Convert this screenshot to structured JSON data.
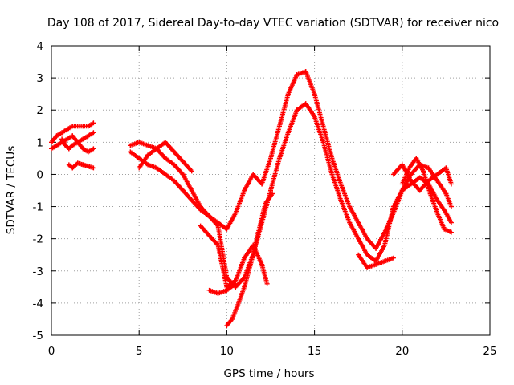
{
  "chart_data": {
    "type": "scatter",
    "title": "Day 108 of 2017, Sidereal Day-to-day VTEC variation (SDTVAR) for receiver nico",
    "xlabel": "GPS time / hours",
    "ylabel": "SDTVAR / TECUs",
    "xlim": [
      0,
      25
    ],
    "ylim": [
      -5,
      4
    ],
    "xticks": [
      "0",
      "5",
      "10",
      "15",
      "20",
      "25"
    ],
    "yticks": [
      "-5",
      "-4",
      "-3",
      "-2",
      "-1",
      "0",
      "1",
      "2",
      "3",
      "4"
    ],
    "grid": true,
    "legend": "none",
    "marker": "plus",
    "color": "#ff0000",
    "series": [
      {
        "x": [
          0.0,
          0.3,
          0.6,
          0.9,
          1.2,
          1.5,
          1.8,
          2.1,
          2.4
        ],
        "values": [
          1.0,
          1.2,
          1.3,
          1.4,
          1.5,
          1.5,
          1.5,
          1.5,
          1.6
        ]
      },
      {
        "x": [
          0.0,
          0.3,
          0.6,
          0.9,
          1.2,
          1.5,
          1.8,
          2.1,
          2.4
        ],
        "values": [
          0.8,
          0.9,
          1.0,
          1.1,
          1.2,
          1.0,
          0.8,
          0.7,
          0.8
        ]
      },
      {
        "x": [
          0.6,
          0.8,
          1.0,
          1.2,
          1.5,
          1.8,
          2.1,
          2.4
        ],
        "values": [
          1.1,
          0.9,
          0.8,
          0.9,
          1.0,
          1.1,
          1.2,
          1.3
        ]
      },
      {
        "x": [
          1.0,
          1.2,
          1.5,
          1.8,
          2.1,
          2.4
        ],
        "values": [
          0.3,
          0.2,
          0.35,
          0.3,
          0.25,
          0.2
        ]
      },
      {
        "x": [
          4.5,
          5.0,
          5.5,
          6.0,
          6.5,
          7.0,
          7.5,
          8.0,
          8.5,
          9.0,
          9.5,
          10.0,
          10.5,
          11.0,
          11.5,
          12.0,
          12.5,
          13.0,
          13.5,
          14.0,
          14.5,
          15.0,
          15.5,
          16.0,
          16.5,
          17.0,
          17.5,
          18.0,
          18.5,
          19.0,
          19.5,
          20.0,
          20.5,
          21.0,
          21.5,
          22.0,
          22.5,
          22.8
        ],
        "values": [
          0.9,
          1.0,
          0.9,
          0.8,
          0.5,
          0.3,
          0.0,
          -0.5,
          -1.0,
          -1.3,
          -1.5,
          -1.7,
          -1.2,
          -0.5,
          0.0,
          -0.3,
          0.5,
          1.5,
          2.5,
          3.1,
          3.2,
          2.5,
          1.5,
          0.5,
          -0.3,
          -1.0,
          -1.5,
          -2.0,
          -2.3,
          -1.8,
          -1.2,
          -0.5,
          0.0,
          0.3,
          0.2,
          -0.2,
          -0.6,
          -1.0
        ]
      },
      {
        "x": [
          4.5,
          5.0,
          5.5,
          6.0,
          6.5,
          7.0,
          7.5,
          8.0,
          8.5,
          9.0,
          9.5,
          10.0,
          10.5,
          11.0,
          11.5,
          12.0,
          12.5,
          13.0,
          13.5,
          14.0,
          14.5,
          15.0,
          15.5,
          16.0,
          16.5,
          17.0,
          17.5,
          18.0,
          18.5,
          19.0,
          19.5,
          20.0,
          20.5,
          21.0,
          21.5,
          22.0,
          22.5,
          22.8
        ],
        "values": [
          0.7,
          0.5,
          0.3,
          0.2,
          0.0,
          -0.2,
          -0.5,
          -0.8,
          -1.1,
          -1.3,
          -1.6,
          -3.2,
          -3.5,
          -3.2,
          -2.5,
          -1.5,
          -0.5,
          0.5,
          1.3,
          2.0,
          2.2,
          1.8,
          1.0,
          0.0,
          -0.8,
          -1.5,
          -2.0,
          -2.5,
          -2.7,
          -2.2,
          -1.0,
          -0.5,
          -0.3,
          -0.1,
          -0.3,
          -0.8,
          -1.2,
          -1.5
        ]
      },
      {
        "x": [
          5.0,
          5.5,
          6.0,
          6.5,
          7.0,
          7.5,
          8.0
        ],
        "values": [
          0.2,
          0.6,
          0.8,
          1.0,
          0.7,
          0.4,
          0.1
        ]
      },
      {
        "x": [
          8.5,
          9.0,
          9.5,
          10.0,
          10.5,
          11.0,
          11.5,
          12.0,
          12.3
        ],
        "values": [
          -1.6,
          -1.9,
          -2.2,
          -3.5,
          -3.3,
          -2.6,
          -2.2,
          -2.8,
          -3.4
        ]
      },
      {
        "x": [
          10.0,
          10.3,
          10.6,
          11.0,
          11.4,
          11.8,
          12.2,
          12.6
        ],
        "values": [
          -4.7,
          -4.5,
          -4.1,
          -3.5,
          -2.7,
          -1.8,
          -0.9,
          -0.6
        ]
      },
      {
        "x": [
          9.0,
          9.5,
          10.0,
          10.5
        ],
        "values": [
          -3.6,
          -3.7,
          -3.6,
          -3.4
        ]
      },
      {
        "x": [
          17.5,
          18.0,
          18.5,
          19.0,
          19.5
        ],
        "values": [
          -2.5,
          -2.9,
          -2.8,
          -2.7,
          -2.6
        ]
      },
      {
        "x": [
          20.0,
          20.4,
          20.8,
          21.2,
          21.6,
          22.0,
          22.4,
          22.8
        ],
        "values": [
          -0.3,
          0.2,
          0.5,
          0.1,
          -0.6,
          -1.2,
          -1.7,
          -1.8
        ]
      },
      {
        "x": [
          19.5,
          20.0,
          20.5,
          21.0,
          21.5,
          22.0,
          22.5,
          22.8
        ],
        "values": [
          0.0,
          0.3,
          -0.2,
          -0.5,
          -0.2,
          0.0,
          0.2,
          -0.3
        ]
      }
    ]
  }
}
